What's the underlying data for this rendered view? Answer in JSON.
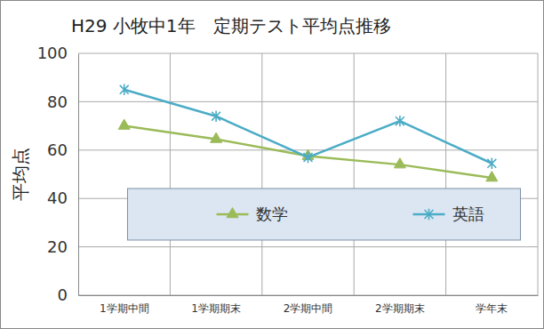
{
  "chart_data": {
    "type": "line",
    "title": "H29 小牧中1年　定期テスト平均点推移",
    "y_label": "平均点",
    "categories": [
      "1学期中間",
      "1学期期末",
      "2学期中間",
      "2学期期末",
      "学年末"
    ],
    "series": [
      {
        "name": "数学",
        "color": "#9bbb59",
        "marker": "triangle",
        "values": [
          70,
          64.5,
          57.5,
          54,
          48.5
        ]
      },
      {
        "name": "英語",
        "color": "#4bacc6",
        "marker": "asterisk",
        "values": [
          85,
          74,
          57,
          72,
          54.5
        ]
      }
    ],
    "ylim": [
      0,
      100
    ],
    "yticks": [
      0,
      20,
      40,
      60,
      80,
      100
    ],
    "grid": true,
    "legend": "center"
  }
}
